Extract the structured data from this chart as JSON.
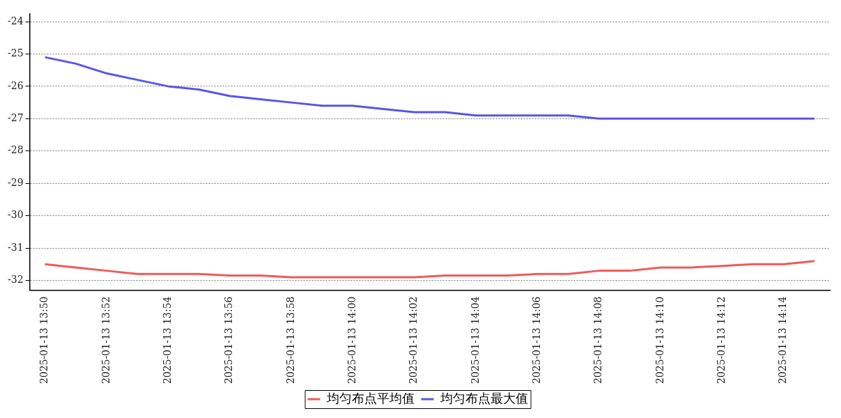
{
  "chart_data": {
    "type": "line",
    "x": [
      "2025-01-13T13:50",
      "2025-01-13T13:51",
      "2025-01-13T13:52",
      "2025-01-13T13:53",
      "2025-01-13T13:54",
      "2025-01-13T13:55",
      "2025-01-13T13:56",
      "2025-01-13T13:57",
      "2025-01-13T13:58",
      "2025-01-13T13:59",
      "2025-01-13T14:00",
      "2025-01-13T14:01",
      "2025-01-13T14:02",
      "2025-01-13T14:03",
      "2025-01-13T14:04",
      "2025-01-13T14:05",
      "2025-01-13T14:06",
      "2025-01-13T14:07",
      "2025-01-13T14:08",
      "2025-01-13T14:09",
      "2025-01-13T14:10",
      "2025-01-13T14:11",
      "2025-01-13T14:12",
      "2025-01-13T14:13",
      "2025-01-13T14:14",
      "2025-01-13T14:15"
    ],
    "series": [
      {
        "name": "均匀布点平均值",
        "color": "#f05a5a",
        "values": [
          -31.5,
          -31.6,
          -31.7,
          -31.8,
          -31.8,
          -31.8,
          -31.85,
          -31.85,
          -31.9,
          -31.9,
          -31.9,
          -31.9,
          -31.9,
          -31.85,
          -31.85,
          -31.85,
          -31.8,
          -31.8,
          -31.7,
          -31.7,
          -31.6,
          -31.6,
          -31.55,
          -31.5,
          -31.5,
          -31.4
        ]
      },
      {
        "name": "均匀布点最大值",
        "color": "#5a55e8",
        "values": [
          -25.1,
          -25.3,
          -25.6,
          -25.8,
          -26.0,
          -26.1,
          -26.3,
          -26.4,
          -26.5,
          -26.6,
          -26.6,
          -26.7,
          -26.8,
          -26.8,
          -26.9,
          -26.9,
          -26.9,
          -26.9,
          -27.0,
          -27.0,
          -27.0,
          -27.0,
          -27.0,
          -27.0,
          -27.0,
          -27.0
        ]
      }
    ],
    "xlim": [
      "2025-01-13T13:49:30",
      "2025-01-13T14:15:30"
    ],
    "xticks": [
      {
        "value": "2025-01-13T13:50",
        "label": "2025-01-13 13:50"
      },
      {
        "value": "2025-01-13T13:52",
        "label": "2025-01-13 13:52"
      },
      {
        "value": "2025-01-13T13:54",
        "label": "2025-01-13 13:54"
      },
      {
        "value": "2025-01-13T13:56",
        "label": "2025-01-13 13:56"
      },
      {
        "value": "2025-01-13T13:58",
        "label": "2025-01-13 13:58"
      },
      {
        "value": "2025-01-13T14:00",
        "label": "2025-01-13 14:00"
      },
      {
        "value": "2025-01-13T14:02",
        "label": "2025-01-13 14:02"
      },
      {
        "value": "2025-01-13T14:04",
        "label": "2025-01-13 14:04"
      },
      {
        "value": "2025-01-13T14:06",
        "label": "2025-01-13 14:06"
      },
      {
        "value": "2025-01-13T14:08",
        "label": "2025-01-13 14:08"
      },
      {
        "value": "2025-01-13T14:10",
        "label": "2025-01-13 14:10"
      },
      {
        "value": "2025-01-13T14:12",
        "label": "2025-01-13 14:12"
      },
      {
        "value": "2025-01-13T14:14",
        "label": "2025-01-13 14:14"
      }
    ],
    "ylim": [
      -32.3,
      -23.75
    ],
    "yticks": [
      -32,
      -31,
      -30,
      -29,
      -28,
      -27,
      -26,
      -25,
      -24
    ],
    "grid": "y",
    "legend": "bottom",
    "marker": "none",
    "line_style": "solid"
  }
}
